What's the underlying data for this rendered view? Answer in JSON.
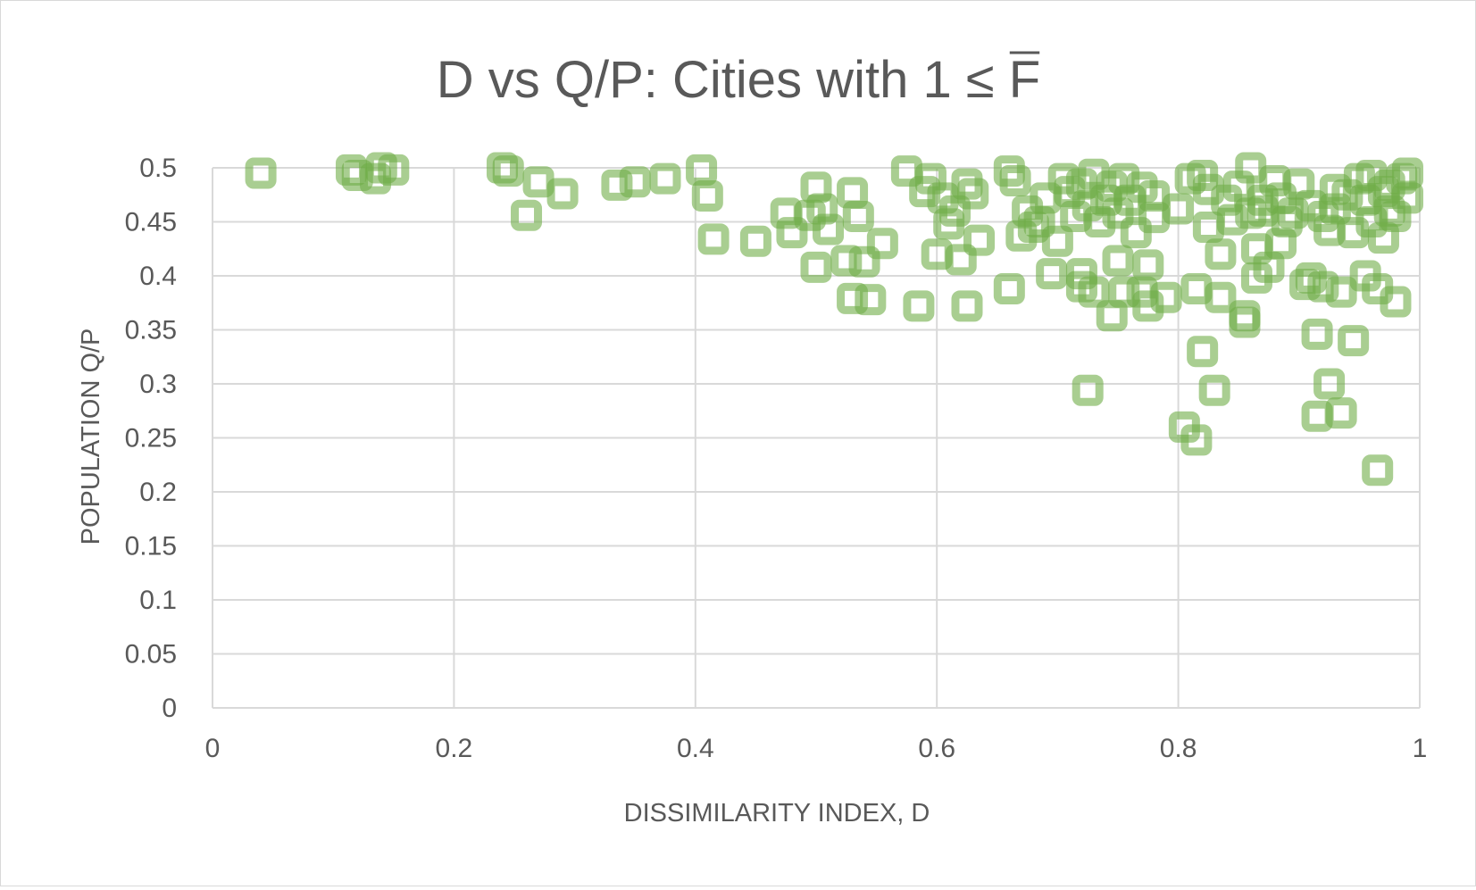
{
  "chart_data": {
    "type": "scatter",
    "title": {
      "prefix": "D  vs Q/P: Cities with 1 ≤ ",
      "symbol": "F"
    },
    "xlabel": "DISSIMILARITY INDEX, D",
    "ylabel": "POPULATION Q/P",
    "xlim": [
      0,
      1
    ],
    "ylim": [
      0,
      0.5
    ],
    "x_ticks": [
      "0",
      "0.2",
      "0.4",
      "0.6",
      "0.8",
      "1"
    ],
    "y_ticks": [
      "0",
      "0.05",
      "0.1",
      "0.15",
      "0.2",
      "0.25",
      "0.3",
      "0.35",
      "0.4",
      "0.45",
      "0.5"
    ],
    "grid": true,
    "marker": {
      "shape": "square",
      "color": "#70ad47"
    },
    "series": [
      {
        "name": "Cities",
        "points": [
          [
            0.04,
            0.495
          ],
          [
            0.115,
            0.498
          ],
          [
            0.12,
            0.493
          ],
          [
            0.135,
            0.49
          ],
          [
            0.14,
            0.5
          ],
          [
            0.15,
            0.498
          ],
          [
            0.24,
            0.5
          ],
          [
            0.245,
            0.497
          ],
          [
            0.26,
            0.456
          ],
          [
            0.27,
            0.487
          ],
          [
            0.29,
            0.476
          ],
          [
            0.335,
            0.484
          ],
          [
            0.35,
            0.487
          ],
          [
            0.375,
            0.49
          ],
          [
            0.405,
            0.498
          ],
          [
            0.41,
            0.474
          ],
          [
            0.415,
            0.434
          ],
          [
            0.45,
            0.432
          ],
          [
            0.475,
            0.458
          ],
          [
            0.48,
            0.44
          ],
          [
            0.495,
            0.456
          ],
          [
            0.5,
            0.482
          ],
          [
            0.5,
            0.408
          ],
          [
            0.505,
            0.462
          ],
          [
            0.51,
            0.443
          ],
          [
            0.525,
            0.414
          ],
          [
            0.53,
            0.477
          ],
          [
            0.53,
            0.379
          ],
          [
            0.535,
            0.455
          ],
          [
            0.54,
            0.413
          ],
          [
            0.545,
            0.378
          ],
          [
            0.555,
            0.43
          ],
          [
            0.575,
            0.497
          ],
          [
            0.585,
            0.372
          ],
          [
            0.59,
            0.478
          ],
          [
            0.595,
            0.49
          ],
          [
            0.6,
            0.42
          ],
          [
            0.605,
            0.472
          ],
          [
            0.61,
            0.448
          ],
          [
            0.615,
            0.46
          ],
          [
            0.62,
            0.415
          ],
          [
            0.625,
            0.485
          ],
          [
            0.625,
            0.372
          ],
          [
            0.63,
            0.476
          ],
          [
            0.635,
            0.433
          ],
          [
            0.66,
            0.388
          ],
          [
            0.66,
            0.497
          ],
          [
            0.665,
            0.488
          ],
          [
            0.67,
            0.437
          ],
          [
            0.675,
            0.46
          ],
          [
            0.68,
            0.445
          ],
          [
            0.685,
            0.45
          ],
          [
            0.69,
            0.472
          ],
          [
            0.695,
            0.402
          ],
          [
            0.7,
            0.432
          ],
          [
            0.705,
            0.49
          ],
          [
            0.71,
            0.478
          ],
          [
            0.715,
            0.455
          ],
          [
            0.72,
            0.402
          ],
          [
            0.72,
            0.39
          ],
          [
            0.72,
            0.485
          ],
          [
            0.725,
            0.465
          ],
          [
            0.725,
            0.294
          ],
          [
            0.73,
            0.494
          ],
          [
            0.73,
            0.385
          ],
          [
            0.735,
            0.45
          ],
          [
            0.74,
            0.47
          ],
          [
            0.745,
            0.483
          ],
          [
            0.745,
            0.363
          ],
          [
            0.75,
            0.458
          ],
          [
            0.75,
            0.414
          ],
          [
            0.755,
            0.49
          ],
          [
            0.755,
            0.385
          ],
          [
            0.76,
            0.47
          ],
          [
            0.765,
            0.44
          ],
          [
            0.77,
            0.482
          ],
          [
            0.77,
            0.385
          ],
          [
            0.775,
            0.41
          ],
          [
            0.775,
            0.372
          ],
          [
            0.78,
            0.474
          ],
          [
            0.78,
            0.454
          ],
          [
            0.79,
            0.38
          ],
          [
            0.8,
            0.462
          ],
          [
            0.805,
            0.26
          ],
          [
            0.81,
            0.49
          ],
          [
            0.815,
            0.388
          ],
          [
            0.815,
            0.248
          ],
          [
            0.82,
            0.33
          ],
          [
            0.82,
            0.493
          ],
          [
            0.825,
            0.48
          ],
          [
            0.825,
            0.445
          ],
          [
            0.83,
            0.294
          ],
          [
            0.835,
            0.38
          ],
          [
            0.835,
            0.42
          ],
          [
            0.84,
            0.47
          ],
          [
            0.845,
            0.452
          ],
          [
            0.85,
            0.483
          ],
          [
            0.855,
            0.357
          ],
          [
            0.855,
            0.363
          ],
          [
            0.86,
            0.5
          ],
          [
            0.86,
            0.458
          ],
          [
            0.865,
            0.425
          ],
          [
            0.865,
            0.398
          ],
          [
            0.87,
            0.47
          ],
          [
            0.87,
            0.46
          ],
          [
            0.875,
            0.408
          ],
          [
            0.88,
            0.488
          ],
          [
            0.885,
            0.472
          ],
          [
            0.885,
            0.43
          ],
          [
            0.89,
            0.45
          ],
          [
            0.895,
            0.458
          ],
          [
            0.9,
            0.485
          ],
          [
            0.905,
            0.392
          ],
          [
            0.91,
            0.398
          ],
          [
            0.91,
            0.465
          ],
          [
            0.915,
            0.346
          ],
          [
            0.915,
            0.27
          ],
          [
            0.92,
            0.39
          ],
          [
            0.92,
            0.455
          ],
          [
            0.925,
            0.3
          ],
          [
            0.925,
            0.442
          ],
          [
            0.93,
            0.48
          ],
          [
            0.93,
            0.462
          ],
          [
            0.935,
            0.385
          ],
          [
            0.935,
            0.273
          ],
          [
            0.94,
            0.475
          ],
          [
            0.945,
            0.34
          ],
          [
            0.945,
            0.44
          ],
          [
            0.95,
            0.49
          ],
          [
            0.955,
            0.47
          ],
          [
            0.955,
            0.4
          ],
          [
            0.96,
            0.493
          ],
          [
            0.96,
            0.45
          ],
          [
            0.965,
            0.388
          ],
          [
            0.965,
            0.22
          ],
          [
            0.97,
            0.435
          ],
          [
            0.97,
            0.478
          ],
          [
            0.975,
            0.484
          ],
          [
            0.975,
            0.46
          ],
          [
            0.98,
            0.455
          ],
          [
            0.98,
            0.376
          ],
          [
            0.985,
            0.49
          ],
          [
            0.99,
            0.472
          ],
          [
            0.99,
            0.495
          ]
        ]
      }
    ]
  }
}
